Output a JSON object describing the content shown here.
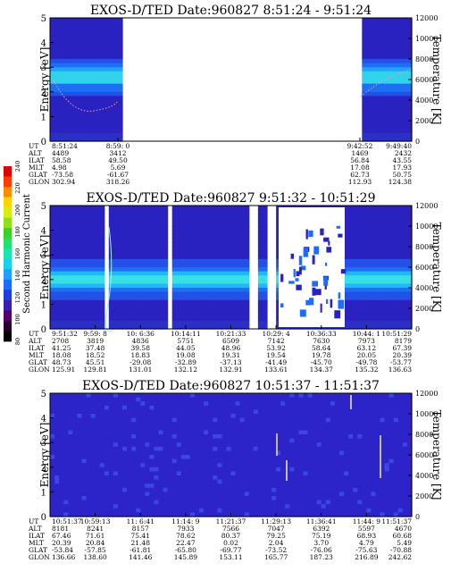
{
  "colorbar": {
    "label": "Second Harmonic Current",
    "ticks": [
      "240",
      "220",
      "200",
      "180",
      "160",
      "140",
      "120",
      "100",
      "80"
    ],
    "colors": [
      "#000000",
      "#2a0030",
      "#52006e",
      "#3a1fb0",
      "#1d3fe0",
      "#1e6cff",
      "#1fa2ff",
      "#17d2ec",
      "#19e6b0",
      "#22e070",
      "#3bd02a",
      "#8ee018",
      "#d6ee10",
      "#ffd400",
      "#ff8c00",
      "#ff3c00",
      "#e00000"
    ]
  },
  "panels": [
    {
      "title": "EXOS-D/TED   Date:960827  8:51:24 - 9:51:24",
      "ylabel": "Energy [eV]",
      "y2label": "Temperature [K]",
      "yticks": [
        "0",
        "1",
        "2",
        "3",
        "4",
        "5"
      ],
      "y2ticks": [
        "0",
        "2000",
        "4000",
        "6000",
        "8000",
        "10000",
        "12000"
      ],
      "orbit_labels": [
        "UT",
        "ALT",
        "ILAT",
        "MLT",
        "GLAT",
        "GLON"
      ],
      "orbit_columns": [
        {
          "ut": "8:51:24",
          "alt": "4489",
          "ilat": "58.58",
          "mlt": "4.98",
          "glat": "-73.58",
          "glon": "302.94"
        },
        {
          "ut": "8:59: 0",
          "alt": "3412",
          "ilat": "49.50",
          "mlt": "5.69",
          "glat": "-61.67",
          "glon": "318.26"
        },
        {
          "ut": "9:42:52",
          "alt": "1469",
          "ilat": "56.84",
          "mlt": "17.08",
          "glat": "62.73",
          "glon": "112.93"
        },
        {
          "ut": "9:49:40",
          "alt": "2432",
          "ilat": "43.55",
          "mlt": "17.93",
          "glat": "50.75",
          "glon": "124.38"
        }
      ]
    },
    {
      "title": "EXOS-D/TED   Date:960827  9:51:32 - 10:51:29",
      "ylabel": "Energy [eV]",
      "y2label": "Temperature [K]",
      "yticks": [
        "0",
        "1",
        "2",
        "3",
        "4",
        "5"
      ],
      "y2ticks": [
        "0",
        "2000",
        "4000",
        "6000",
        "8000",
        "10000",
        "12000"
      ],
      "orbit_labels": [
        "UT",
        "ALT",
        "ILAT",
        "MLT",
        "GLAT",
        "GLON"
      ],
      "orbit_columns": [
        {
          "ut": "9:51:32",
          "alt": "2708",
          "ilat": "41.25",
          "mlt": "18.08",
          "glat": "48.73",
          "glon": "125.91"
        },
        {
          "ut": "9:59: 8",
          "alt": "3819",
          "ilat": "37.48",
          "mlt": "18.52",
          "glat": "45.51",
          "glon": "129.81"
        },
        {
          "ut": "10: 6:36",
          "alt": "4836",
          "ilat": "39.58",
          "mlt": "18.83",
          "glat": "-29.08",
          "glon": "131.01"
        },
        {
          "ut": "10:14:11",
          "alt": "5751",
          "ilat": "44.05",
          "mlt": "19.08",
          "glat": "-32.89",
          "glon": "132.12"
        },
        {
          "ut": "10:21:33",
          "alt": "6509",
          "ilat": "48.96",
          "mlt": "19.31",
          "glat": "-37.13",
          "glon": "132.91"
        },
        {
          "ut": "10:29: 4",
          "alt": "7142",
          "ilat": "53.92",
          "mlt": "19.54",
          "glat": "-41.49",
          "glon": "133.61"
        },
        {
          "ut": "10:36:33",
          "alt": "7630",
          "ilat": "58.64",
          "mlt": "19.78",
          "glat": "-45.70",
          "glon": "134.37"
        },
        {
          "ut": "10:44: 1",
          "alt": "7973",
          "ilat": "63.12",
          "mlt": "20.05",
          "glat": "-49.78",
          "glon": "135.32"
        },
        {
          "ut": "10:51:29",
          "alt": "8179",
          "ilat": "67.39",
          "mlt": "20.39",
          "glat": "-53.77",
          "glon": "136.63"
        }
      ]
    },
    {
      "title": "EXOS-D/TED   Date:960827  10:51:37 - 11:51:37",
      "ylabel": "Energy [eV]",
      "y2label": "Temperature [K]",
      "yticks": [
        "0",
        "1",
        "2",
        "3",
        "4",
        "5"
      ],
      "y2ticks": [
        "0",
        "2000",
        "4000",
        "6000",
        "8000",
        "10000",
        "12000"
      ],
      "orbit_labels": [
        "UT",
        "ALT",
        "ILAT",
        "MLT",
        "GLAT",
        "GLON"
      ],
      "orbit_columns": [
        {
          "ut": "10:51:37",
          "alt": "8181",
          "ilat": "67.46",
          "mlt": "20.39",
          "glat": "-53.84",
          "glon": "136.66"
        },
        {
          "ut": "10:59:13",
          "alt": "8241",
          "ilat": "71.61",
          "mlt": "20.84",
          "glat": "-57.85",
          "glon": "138.60"
        },
        {
          "ut": "11: 6:41",
          "alt": "8157",
          "ilat": "75.41",
          "mlt": "21.48",
          "glat": "-61.81",
          "glon": "141.46"
        },
        {
          "ut": "11:14: 9",
          "alt": "7933",
          "ilat": "78.62",
          "mlt": "22.47",
          "glat": "-65.80",
          "glon": "145.89"
        },
        {
          "ut": "11:21:37",
          "alt": "7566",
          "ilat": "80.37",
          "mlt": "0.02",
          "glat": "-69.77",
          "glon": "153.11"
        },
        {
          "ut": "11:29:13",
          "alt": "7047",
          "ilat": "79.25",
          "mlt": "2.04",
          "glat": "-73.52",
          "glon": "165.77"
        },
        {
          "ut": "11:36:41",
          "alt": "6392",
          "ilat": "75.19",
          "mlt": "3.70",
          "glat": "-76.06",
          "glon": "187.23"
        },
        {
          "ut": "11:44: 9",
          "alt": "5597",
          "ilat": "68.93",
          "mlt": "4.79",
          "glat": "-75.63",
          "glon": "216.89"
        },
        {
          "ut": "11:51:37",
          "alt": "4670",
          "ilat": "60.68",
          "mlt": "5.49",
          "glat": "-70.88",
          "glon": "242.62"
        }
      ]
    }
  ],
  "chart_data": [
    {
      "type": "heatmap",
      "title": "EXOS-D/TED   Date:960827  8:51:24 - 9:51:24",
      "xlabel": "",
      "ylabel": "Energy [eV]",
      "y2label": "Temperature [K]",
      "ylim": [
        0,
        5
      ],
      "y2lim": [
        0,
        12000
      ],
      "colorbar_label": "Second Harmonic Current",
      "colorbar_range": [
        80,
        240
      ],
      "x": [
        "8:51:24",
        "8:59: 0",
        "9:42:52",
        "9:49:40"
      ],
      "data_intervals_ut": [
        [
          "8:51:24",
          "8:59: 0"
        ],
        [
          "9:42:52",
          "9:51:24"
        ]
      ],
      "peak_energy_eV": 2.6
    },
    {
      "type": "heatmap",
      "title": "EXOS-D/TED   Date:960827  9:51:32 - 10:51:29",
      "xlabel": "",
      "ylabel": "Energy [eV]",
      "y2label": "Temperature [K]",
      "ylim": [
        0,
        5
      ],
      "y2lim": [
        0,
        12000
      ],
      "colorbar_label": "Second Harmonic Current",
      "colorbar_range": [
        80,
        240
      ],
      "x": [
        "9:51:32",
        "9:59: 8",
        "10: 6:36",
        "10:14:11",
        "10:21:33",
        "10:29: 4",
        "10:36:33",
        "10:44: 1",
        "10:51:29"
      ],
      "peak_energy_eV": 2.0
    },
    {
      "type": "heatmap",
      "title": "EXOS-D/TED   Date:960827  10:51:37 - 11:51:37",
      "xlabel": "",
      "ylabel": "Energy [eV]",
      "y2label": "Temperature [K]",
      "ylim": [
        0,
        5
      ],
      "y2lim": [
        0,
        12000
      ],
      "colorbar_label": "Second Harmonic Current",
      "colorbar_range": [
        80,
        240
      ],
      "x": [
        "10:51:37",
        "10:59:13",
        "11: 6:41",
        "11:14: 9",
        "11:21:37",
        "11:29:13",
        "11:36:41",
        "11:44: 9",
        "11:51:37"
      ]
    }
  ]
}
